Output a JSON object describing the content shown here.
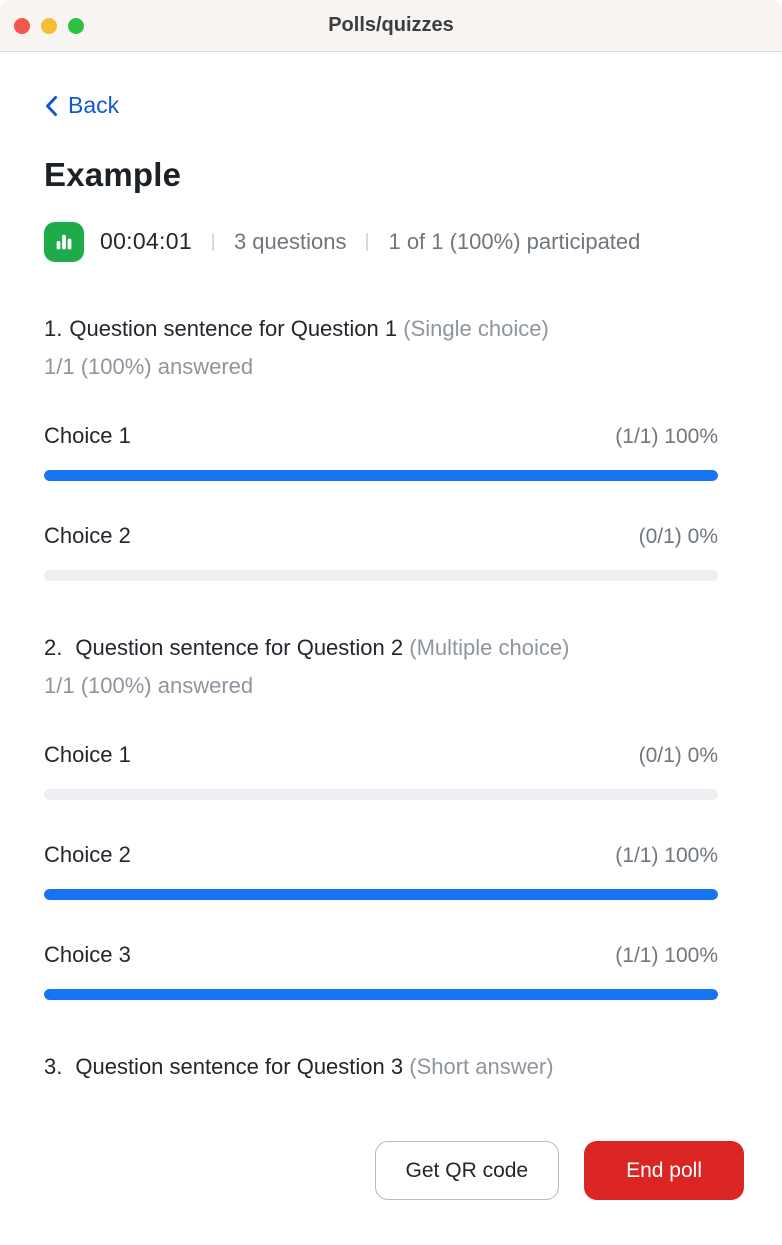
{
  "window": {
    "title": "Polls/quizzes"
  },
  "nav": {
    "back_label": "Back"
  },
  "poll": {
    "title": "Example",
    "timer": "00:04:01",
    "questions_count": "3 questions",
    "participation": "1 of 1 (100%) participated",
    "questions": [
      {
        "number": "1.",
        "title": "Question sentence for Question 1",
        "type": "(Single choice)",
        "answered": "1/1 (100%) answered",
        "choices": [
          {
            "label": "Choice 1",
            "stat": "(1/1) 100%",
            "percent": 100
          },
          {
            "label": "Choice 2",
            "stat": "(0/1) 0%",
            "percent": 0
          }
        ]
      },
      {
        "number": "2.",
        "title": "Question sentence for Question 2",
        "type": "(Multiple choice)",
        "answered": "1/1 (100%) answered",
        "choices": [
          {
            "label": "Choice 1",
            "stat": "(0/1) 0%",
            "percent": 0
          },
          {
            "label": "Choice 2",
            "stat": "(1/1) 100%",
            "percent": 100
          },
          {
            "label": "Choice 3",
            "stat": "(1/1) 100%",
            "percent": 100
          }
        ]
      },
      {
        "number": "3.",
        "title": "Question sentence for Question 3",
        "type": "(Short answer)",
        "answered": "",
        "choices": []
      }
    ]
  },
  "footer": {
    "qr_button": "Get QR code",
    "end_button": "End poll"
  },
  "icons": {
    "poll_status": "bar-chart-icon",
    "back": "chevron-left-icon"
  },
  "colors": {
    "accent_blue": "#1159d1",
    "bar_blue": "#1673f2",
    "bar_track": "#eceef1",
    "status_green": "#20ab4b",
    "danger_red": "#db2522",
    "titlebar_bg": "#f7f4f2",
    "titlebar_border": "#dcd8d6",
    "mac_red": "#f4564e",
    "mac_yellow": "#f6bd32",
    "mac_green": "#2fc144",
    "gray_mid": "#6f767e",
    "gray_light": "#8f959e",
    "text_dark": "#20242b"
  }
}
